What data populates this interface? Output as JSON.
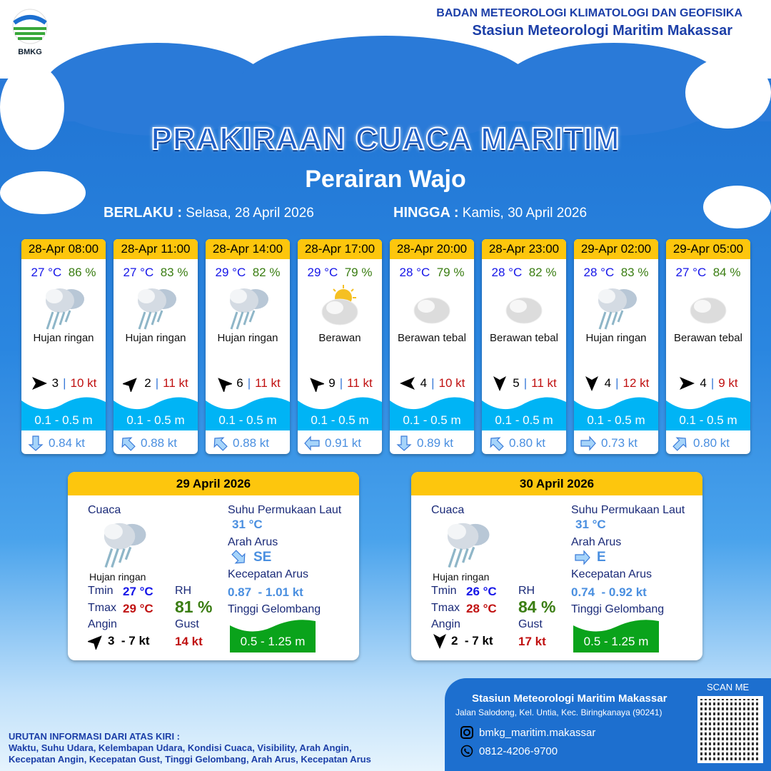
{
  "header": {
    "logo_text": "BMKG",
    "org": "BADAN METEOROLOGI KLIMATOLOGI DAN GEOFISIKA",
    "station": "Stasiun Meteorologi Maritim Makassar"
  },
  "title": "PRAKIRAAN CUACA MARITIM",
  "subtitle": "Perairan Wajo",
  "validity": {
    "from_label": "BERLAKU :",
    "from": "Selasa, 28 April 2026",
    "to_label": "HINGGA :",
    "to": "Kamis, 30 April 2026"
  },
  "colors": {
    "header_yellow": "#fdc60d",
    "wave_blue": "#00b4f5",
    "wave_green": "#0aa31b"
  },
  "forecasts": [
    {
      "time": "28-Apr 08:00",
      "temp": "27 °C",
      "rh": "86 %",
      "icon": "rain-cloud-icon",
      "cond": "Hujan ringan",
      "wind_dir_deg": 90,
      "wind": "3",
      "gust": "10 kt",
      "wave": "0.1 - 0.5 m",
      "current_dir_deg": 180,
      "current": "0.84 kt"
    },
    {
      "time": "28-Apr 11:00",
      "temp": "27 °C",
      "rh": "83 %",
      "icon": "rain-cloud-icon",
      "cond": "Hujan ringan",
      "wind_dir_deg": 45,
      "wind": "2",
      "gust": "11 kt",
      "wave": "0.1 - 0.5 m",
      "current_dir_deg": 315,
      "current": "0.88 kt"
    },
    {
      "time": "28-Apr 14:00",
      "temp": "29 °C",
      "rh": "82 %",
      "icon": "rain-cloud-icon",
      "cond": "Hujan ringan",
      "wind_dir_deg": 315,
      "wind": "6",
      "gust": "11 kt",
      "wave": "0.1 - 0.5 m",
      "current_dir_deg": 315,
      "current": "0.88 kt"
    },
    {
      "time": "28-Apr 17:00",
      "temp": "29 °C",
      "rh": "79 %",
      "icon": "partly-cloudy-icon",
      "cond": "Berawan",
      "wind_dir_deg": 315,
      "wind": "9",
      "gust": "11 kt",
      "wave": "0.1 - 0.5 m",
      "current_dir_deg": 270,
      "current": "0.91 kt"
    },
    {
      "time": "28-Apr 20:00",
      "temp": "28 °C",
      "rh": "79 %",
      "icon": "cloud-icon",
      "cond": "Berawan tebal",
      "wind_dir_deg": 270,
      "wind": "4",
      "gust": "10 kt",
      "wave": "0.1 - 0.5 m",
      "current_dir_deg": 180,
      "current": "0.89 kt"
    },
    {
      "time": "28-Apr 23:00",
      "temp": "28 °C",
      "rh": "82 %",
      "icon": "cloud-icon",
      "cond": "Berawan tebal",
      "wind_dir_deg": 180,
      "wind": "5",
      "gust": "11 kt",
      "wave": "0.1 - 0.5 m",
      "current_dir_deg": 315,
      "current": "0.80 kt"
    },
    {
      "time": "29-Apr 02:00",
      "temp": "28 °C",
      "rh": "83 %",
      "icon": "rain-cloud-icon",
      "cond": "Hujan ringan",
      "wind_dir_deg": 180,
      "wind": "4",
      "gust": "12 kt",
      "wave": "0.1 - 0.5 m",
      "current_dir_deg": 90,
      "current": "0.73 kt"
    },
    {
      "time": "29-Apr 05:00",
      "temp": "27 °C",
      "rh": "84 %",
      "icon": "cloud-icon",
      "cond": "Berawan tebal",
      "wind_dir_deg": 90,
      "wind": "4",
      "gust": "9 kt",
      "wave": "0.1 - 0.5 m",
      "current_dir_deg": 45,
      "current": "0.80 kt"
    }
  ],
  "labels": {
    "cuaca": "Cuaca",
    "sst": "Suhu Permukaan Laut",
    "arah": "Arah Arus",
    "kec": "Kecepatan Arus",
    "tinggi": "Tinggi Gelombang",
    "tmin": "Tmin",
    "tmax": "Tmax",
    "rh": "RH",
    "angin": "Angin",
    "gust": "Gust"
  },
  "days": [
    {
      "date": "29 April 2026",
      "cond": "Hujan ringan",
      "tmin": "27 °C",
      "tmax": "29 °C",
      "rh": "81 %",
      "wind_dir_deg": 45,
      "wind": "3  - 7 kt",
      "gust": "14 kt",
      "sst": "31 °C",
      "current_dir": "SE",
      "current_dir_deg": 135,
      "current_speed": "0.87  - 1.01 kt",
      "wave": "0.5 - 1.25 m"
    },
    {
      "date": "30 April 2026",
      "cond": "Hujan ringan",
      "tmin": "26 °C",
      "tmax": "28 °C",
      "rh": "84 %",
      "wind_dir_deg": 180,
      "wind": "2  - 7 kt",
      "gust": "17 kt",
      "sst": "31 °C",
      "current_dir": "E",
      "current_dir_deg": 90,
      "current_speed": "0.74  - 0.92 kt",
      "wave": "0.5 - 1.25 m"
    }
  ],
  "footer": {
    "station": "Stasiun Meteorologi Maritim Makassar",
    "address": "Jalan Salodong, Kel. Untia, Kec. Biringkanaya (90241)",
    "instagram": "bmkg_maritim.makassar",
    "whatsapp": "0812-4206-9700",
    "scan": "SCAN ME"
  },
  "legend": {
    "title": "URUTAN INFORMASI DARI ATAS KIRI :",
    "line1": "Waktu, Suhu Udara, Kelembapan Udara, Kondisi Cuaca, Visibility, Arah Angin,",
    "line2": "Kecepatan Angin, Kecepatan Gust, Tinggi Gelombang, Arah Arus, Kecepatan Arus"
  }
}
